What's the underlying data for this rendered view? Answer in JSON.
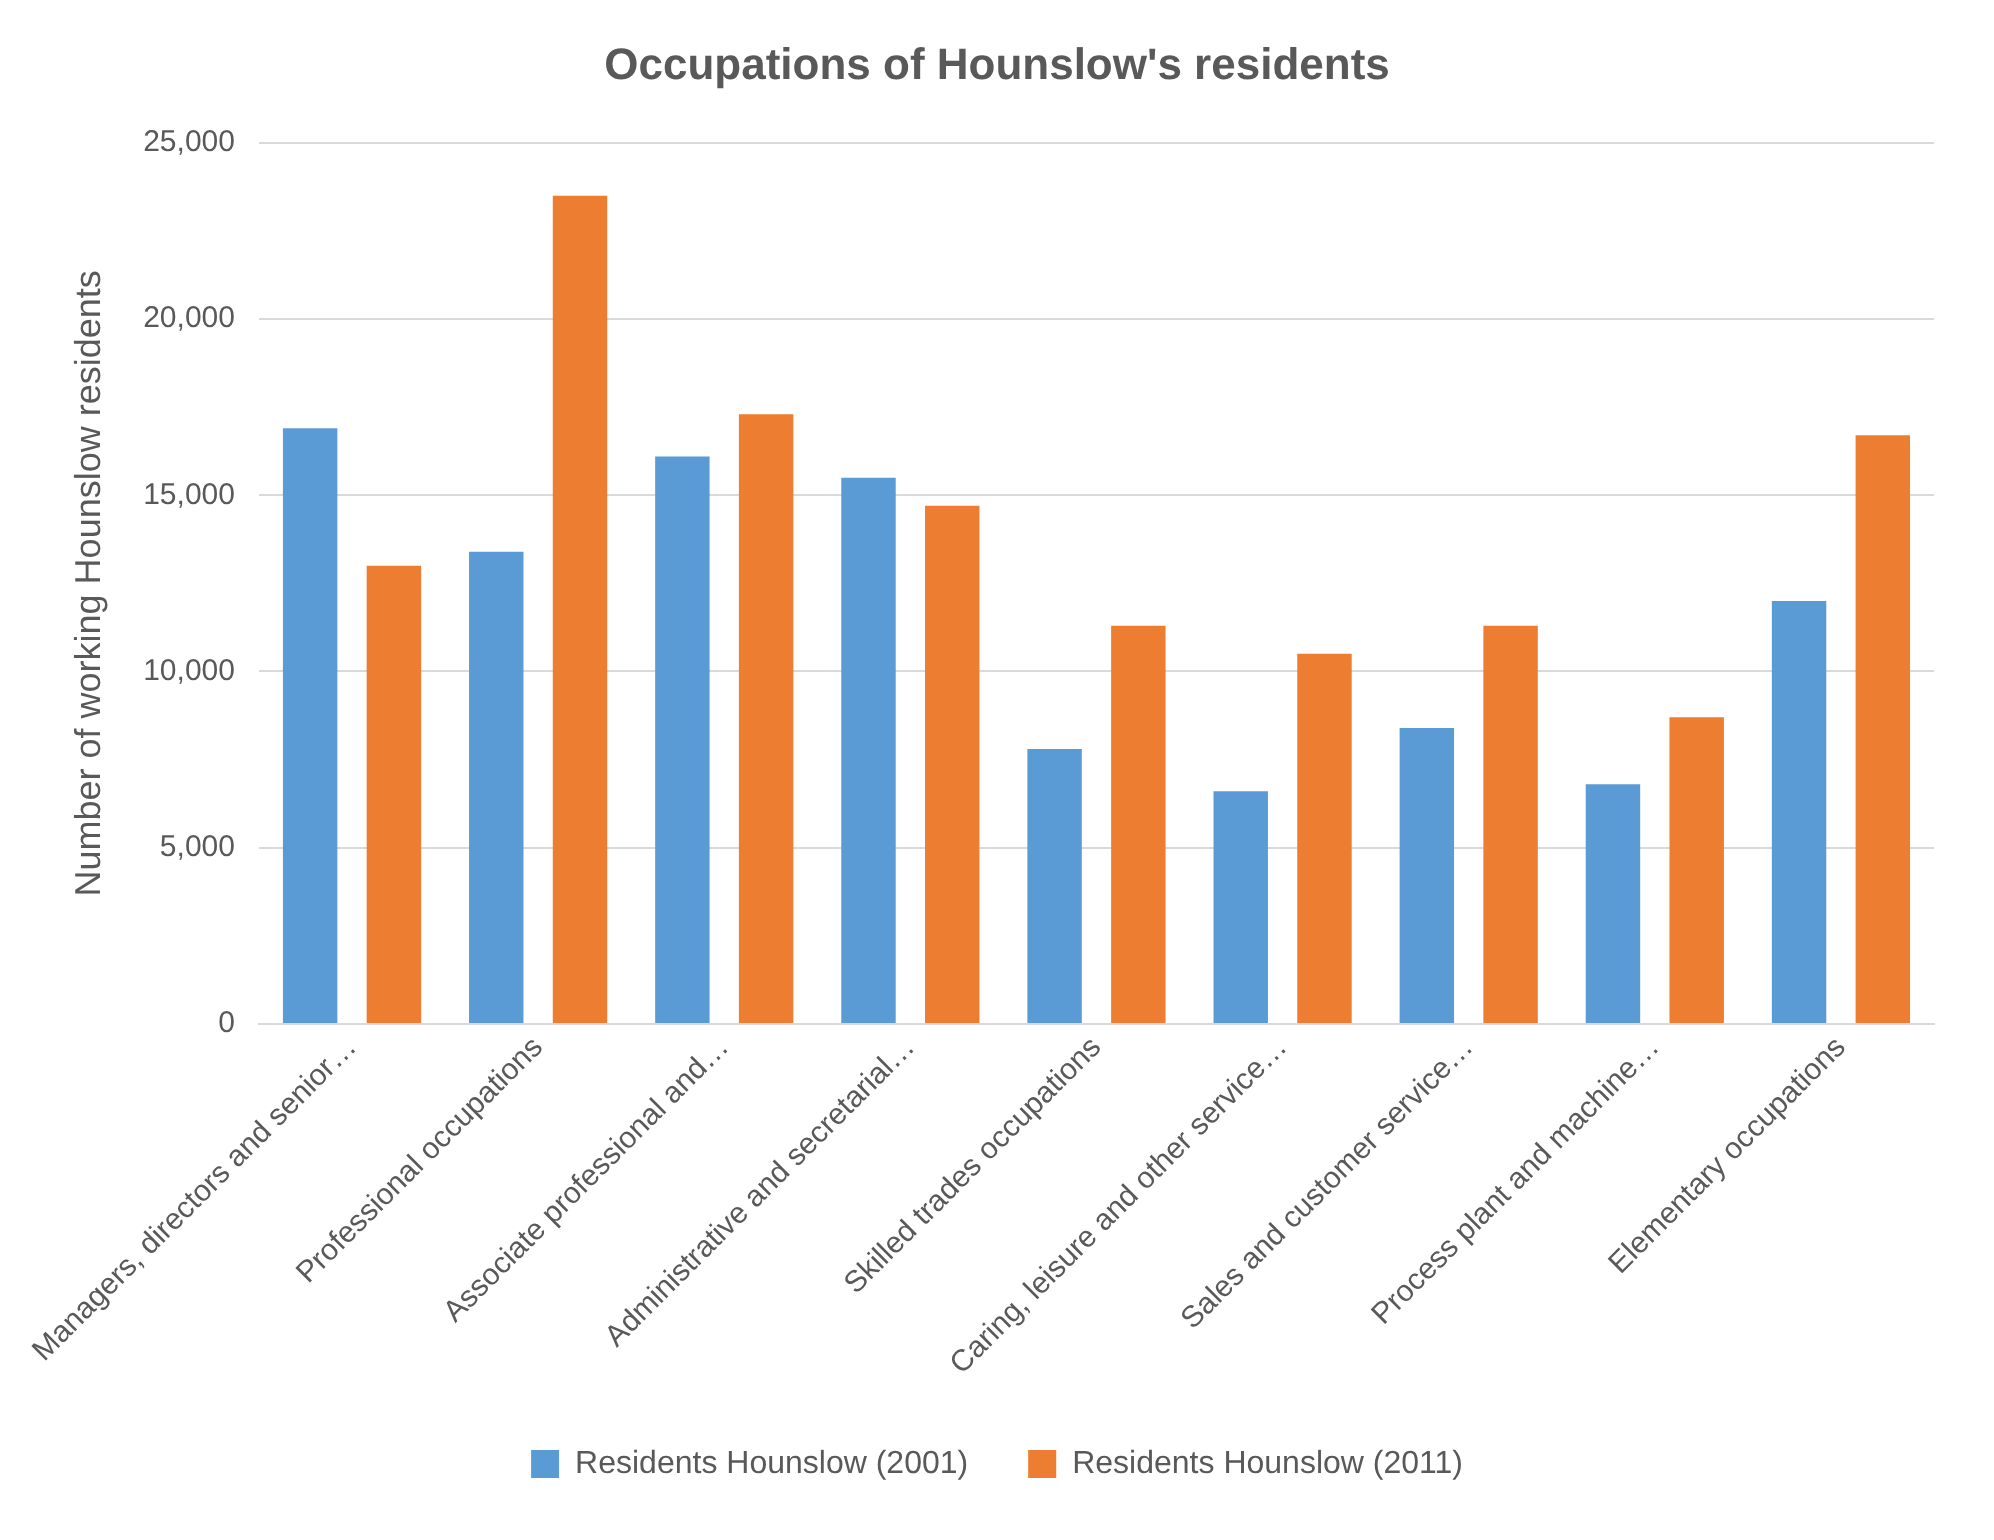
{
  "chart_data": {
    "type": "bar",
    "title": "Occupations of Hounslow's residents",
    "ylabel": "Number of working Hounslow residents",
    "categories": [
      "Managers, directors and senior…",
      "Professional occupations",
      "Associate professional and…",
      "Administrative and secretarial…",
      "Skilled trades occupations",
      "Caring, leisure and other service…",
      "Sales and customer service…",
      "Process plant and machine…",
      "Elementary occupations"
    ],
    "series": [
      {
        "name": "Residents Hounslow (2001)",
        "color": "#5b9bd5",
        "values": [
          16900,
          13400,
          16100,
          15500,
          7800,
          6600,
          8400,
          6800,
          12000
        ]
      },
      {
        "name": "Residents Hounslow (2011)",
        "color": "#ed7d31",
        "values": [
          13000,
          23500,
          17300,
          14700,
          11300,
          10500,
          11300,
          8700,
          16700
        ]
      }
    ],
    "ylim": [
      0,
      25000
    ],
    "yticks": [
      {
        "value": 0,
        "label": "0"
      },
      {
        "value": 5000,
        "label": "5,000"
      },
      {
        "value": 10000,
        "label": "10,000"
      },
      {
        "value": 15000,
        "label": "15,000"
      },
      {
        "value": 20000,
        "label": "20,000"
      },
      {
        "value": 25000,
        "label": "25,000"
      }
    ],
    "grid": "y",
    "legend": "bottom"
  }
}
